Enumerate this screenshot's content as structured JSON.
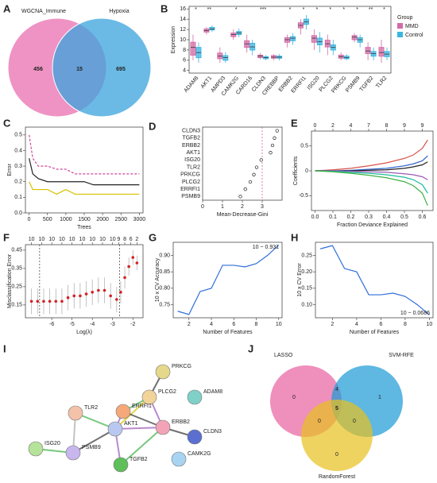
{
  "chart_data": [
    {
      "panel": "A",
      "type": "venn2",
      "sets": [
        {
          "name": "WGCNA_Immune",
          "color": "#e86fb0"
        },
        {
          "name": "Hypoxia",
          "color": "#3aa3dc"
        }
      ],
      "values": [
        456,
        15,
        695
      ]
    },
    {
      "panel": "B",
      "type": "box",
      "ylabel": "Expression",
      "legend_title": "Group",
      "ylim": [
        3.5,
        16.5
      ],
      "yticks": [
        4,
        6,
        8,
        10,
        12,
        14,
        16
      ],
      "categories": [
        "ADAM8",
        "AKT1",
        "AMPD3",
        "CAMK2G",
        "CARD16",
        "CLDN3",
        "CREBBP",
        "ERBB2",
        "ERRFI1",
        "ISG20",
        "PLCG2",
        "PRKCG",
        "PSMB9",
        "TGFB2",
        "TLR2"
      ],
      "significance": [
        "*",
        "**",
        null,
        "*",
        null,
        "***",
        null,
        "*",
        "*",
        "*",
        "*",
        "*",
        "*",
        "**",
        "*"
      ],
      "series": [
        {
          "name": "MMD",
          "color": "#d46aa6",
          "values": [
            [
              6,
              7,
              8.5,
              9.5,
              11
            ],
            [
              11,
              11.5,
              11.8,
              12.1,
              12.5
            ],
            [
              5.5,
              6.3,
              6.8,
              7.4,
              8.5
            ],
            [
              10,
              10.6,
              11,
              11.3,
              12
            ],
            [
              7.5,
              8.5,
              9.2,
              9.8,
              11
            ],
            [
              6.2,
              6.5,
              6.8,
              7,
              7.4
            ],
            [
              6,
              6.4,
              6.6,
              6.9,
              7.2
            ],
            [
              8.5,
              9.5,
              10,
              10.4,
              11
            ],
            [
              11,
              12.3,
              12.8,
              13.3,
              14
            ],
            [
              8,
              9.5,
              10.3,
              10.8,
              12
            ],
            [
              7,
              8.6,
              9.2,
              9.9,
              11
            ],
            [
              6,
              6.4,
              6.7,
              7,
              7.5
            ],
            [
              9.5,
              10,
              10.5,
              10.8,
              11.3
            ],
            [
              6,
              7.3,
              7.8,
              8.5,
              9.5
            ],
            [
              5.5,
              6.8,
              7.5,
              8.5,
              10
            ]
          ]
        },
        {
          "name": "Control",
          "color": "#3ab5e0",
          "values": [
            [
              5.5,
              6.5,
              7.5,
              8.5,
              9.5
            ],
            [
              11.5,
              11.9,
              12.1,
              12.4,
              12.8
            ],
            [
              5.5,
              6,
              6.5,
              6.9,
              7.6
            ],
            [
              10.5,
              11,
              11.3,
              11.6,
              12.2
            ],
            [
              7,
              8,
              8.6,
              9.3,
              10
            ],
            [
              6,
              6.3,
              6.5,
              6.7,
              7
            ],
            [
              6,
              6.4,
              6.6,
              6.8,
              7.2
            ],
            [
              9,
              9.8,
              10.3,
              10.6,
              11.3
            ],
            [
              12,
              13,
              13.5,
              14,
              14.8
            ],
            [
              7.5,
              9,
              9.6,
              10.3,
              11.5
            ],
            [
              7,
              8,
              8.5,
              9,
              10
            ],
            [
              6,
              6.3,
              6.5,
              6.8,
              7.2
            ],
            [
              8.5,
              9.5,
              10,
              10.4,
              11
            ],
            [
              6,
              6.8,
              7.3,
              7.7,
              8.5
            ],
            [
              6,
              6.7,
              7.2,
              7.7,
              8.5
            ]
          ]
        }
      ]
    },
    {
      "panel": "C",
      "type": "line",
      "xlabel": "Trees",
      "ylabel": "Error",
      "xlim": [
        -100,
        3100
      ],
      "xticks": [
        0,
        500,
        1000,
        1500,
        2000,
        2500,
        3000
      ],
      "ylim": [
        0,
        0.55
      ],
      "yticks": [
        {
          "value": 0,
          "label": "0.0"
        },
        0.1,
        0.2,
        0.3,
        0.4,
        0.5
      ],
      "x": [
        1,
        100,
        250,
        500,
        750,
        1000,
        1250,
        1500,
        1750,
        2000,
        2500,
        3000
      ],
      "series": [
        {
          "color": "#d0459a",
          "dash": true,
          "values": [
            0.5,
            0.35,
            0.3,
            0.3,
            0.28,
            0.28,
            0.25,
            0.25,
            0.25,
            0.25,
            0.25,
            0.25
          ]
        },
        {
          "color": "#222222",
          "values": [
            0.35,
            0.25,
            0.22,
            0.2,
            0.2,
            0.2,
            0.2,
            0.2,
            0.18,
            0.18,
            0.18,
            0.18
          ]
        },
        {
          "color": "#d8c000",
          "values": [
            0.2,
            0.15,
            0.15,
            0.15,
            0.12,
            0.15,
            0.12,
            0.12,
            0.12,
            0.12,
            0.12,
            0.12
          ]
        }
      ]
    },
    {
      "panel": "D",
      "type": "dot",
      "xlabel": "Mean-Decrease-Gini",
      "xlim": [
        0,
        4
      ],
      "xticks": [
        0,
        1,
        2,
        3
      ],
      "refline": 3,
      "categories": [
        "CLDN3",
        "TGFB2",
        "ERBB2",
        "AKT1",
        "ISG20",
        "TLR2",
        "PRKCG",
        "PLCG2",
        "ERRFI1",
        "PSMB9"
      ],
      "values": [
        3.75,
        3.62,
        3.52,
        3.42,
        2.95,
        2.72,
        2.58,
        2.4,
        2.15,
        1.9
      ]
    },
    {
      "panel": "E",
      "type": "line",
      "xlabel": "Fraction Deviance Explained",
      "ylabel": "Coefficients",
      "xlim": [
        -0.02,
        0.66
      ],
      "xticks": [
        {
          "value": 0,
          "label": "0.0"
        },
        0.1,
        0.2,
        0.3,
        0.4,
        0.5,
        0.6
      ],
      "ylim": [
        -0.8,
        0.8
      ],
      "yticks": [
        -0.5,
        0,
        0.5
      ],
      "top_ticks": [
        0,
        {
          "value": 0.1,
          "label": "2"
        },
        {
          "value": 0.2,
          "label": "4"
        },
        {
          "value": 0.3,
          "label": "7"
        },
        {
          "value": 0.4,
          "label": "8"
        },
        {
          "value": 0.5,
          "label": "9"
        },
        {
          "value": 0.6,
          "label": "9"
        }
      ],
      "x": [
        0,
        0.1,
        0.2,
        0.3,
        0.4,
        0.5,
        0.55,
        0.6,
        0.63
      ],
      "series": [
        {
          "color": "#d9534f",
          "values": [
            0,
            0.02,
            0.05,
            0.1,
            0.16,
            0.25,
            0.32,
            0.45,
            0.62
          ]
        },
        {
          "color": "#3366cc",
          "values": [
            0,
            0,
            0.01,
            0.03,
            0.05,
            0.1,
            0.14,
            0.2,
            0.3
          ]
        },
        {
          "color": "#222222",
          "values": [
            0,
            0,
            0,
            0.01,
            0.02,
            0.05,
            0.08,
            0.12,
            0.18
          ]
        },
        {
          "color": "#9b59b6",
          "values": [
            0,
            0,
            -0.01,
            -0.02,
            -0.03,
            -0.06,
            -0.08,
            -0.12,
            -0.18
          ]
        },
        {
          "color": "#1abc9c",
          "values": [
            0,
            -0.01,
            -0.03,
            -0.05,
            -0.08,
            -0.13,
            -0.18,
            -0.28,
            -0.45
          ]
        },
        {
          "color": "#3cb043",
          "values": [
            0,
            -0.02,
            -0.05,
            -0.09,
            -0.14,
            -0.22,
            -0.3,
            -0.45,
            -0.7
          ]
        }
      ]
    },
    {
      "panel": "F",
      "type": "errorbar",
      "xlabel": "Log(λ)",
      "ylabel": "Misclassification Error",
      "xlim": [
        -7.3,
        -1.5
      ],
      "xticks": [
        -6,
        -5,
        -4,
        -3,
        -2
      ],
      "ylim": [
        0.08,
        0.48
      ],
      "yticks": [
        0.15,
        0.25,
        0.35,
        0.45
      ],
      "reflines": [
        -6.6,
        -2.65
      ],
      "color": "#d62020",
      "top_ticks": [
        {
          "value": -7,
          "label": "10"
        },
        {
          "value": -6.5,
          "label": "10"
        },
        {
          "value": -6,
          "label": "10"
        },
        {
          "value": -5.5,
          "label": "10"
        },
        {
          "value": -5,
          "label": "10"
        },
        {
          "value": -4.5,
          "label": "10"
        },
        {
          "value": -4,
          "label": "10"
        },
        {
          "value": -3.5,
          "label": "10"
        },
        {
          "value": -3,
          "label": "10"
        },
        {
          "value": -2.7,
          "label": "9"
        },
        {
          "value": -2.4,
          "label": "8"
        },
        {
          "value": -2.1,
          "label": "6"
        },
        {
          "value": -1.8,
          "label": "2"
        }
      ],
      "x": [
        -7,
        -6.7,
        -6.4,
        -6.1,
        -5.8,
        -5.5,
        -5.2,
        -4.9,
        -4.6,
        -4.3,
        -4,
        -3.7,
        -3.4,
        -3.1,
        -2.8,
        -2.6,
        -2.4,
        -2.2,
        -2,
        -1.8
      ],
      "values": [
        0.17,
        0.17,
        0.17,
        0.17,
        0.17,
        0.17,
        0.19,
        0.2,
        0.2,
        0.21,
        0.22,
        0.23,
        0.23,
        0.2,
        0.18,
        0.22,
        0.3,
        0.36,
        0.41,
        0.38
      ],
      "errors": [
        0.07,
        0.07,
        0.07,
        0.07,
        0.07,
        0.07,
        0.07,
        0.07,
        0.07,
        0.07,
        0.07,
        0.07,
        0.07,
        0.07,
        0.07,
        0.06,
        0.06,
        0.05,
        0.04,
        0.04
      ]
    },
    {
      "panel": "G",
      "type": "line",
      "xlabel": "Number of Features",
      "ylabel": "10 x CV Accuracy",
      "annotation": "10 ~ 0.931",
      "xlim": [
        0.6,
        10.3
      ],
      "xticks": [
        2,
        4,
        6,
        8,
        10
      ],
      "ylim": [
        0.71,
        0.94
      ],
      "yticks": [
        0.75,
        {
          "value": 0.8,
          "label": "0.80"
        },
        0.85,
        {
          "value": 0.9,
          "label": "0.90"
        }
      ],
      "x": [
        1,
        2,
        3,
        4,
        5,
        6,
        7,
        8,
        9,
        10
      ],
      "series": [
        {
          "color": "#2f6fd8",
          "values": [
            0.73,
            0.72,
            0.79,
            0.8,
            0.87,
            0.87,
            0.865,
            0.875,
            0.9,
            0.9314
          ]
        }
      ]
    },
    {
      "panel": "H",
      "type": "line",
      "xlabel": "Number of Features",
      "ylabel": "10 x CV Error",
      "annotation": "10 ~ 0.0686",
      "xlim": [
        0.6,
        10.3
      ],
      "xticks": [
        2,
        4,
        6,
        8,
        10
      ],
      "ylim": [
        0.06,
        0.29
      ],
      "yticks": [
        {
          "value": 0.1,
          "label": "0.10"
        },
        0.15,
        {
          "value": 0.2,
          "label": "0.20"
        },
        0.25
      ],
      "x": [
        1,
        2,
        3,
        4,
        5,
        6,
        7,
        8,
        9,
        10
      ],
      "series": [
        {
          "color": "#2f6fd8",
          "values": [
            0.27,
            0.28,
            0.21,
            0.2,
            0.13,
            0.13,
            0.135,
            0.125,
            0.1,
            0.0686
          ]
        }
      ]
    },
    {
      "panel": "I",
      "type": "network",
      "nodes": [
        {
          "label": "PRKCG",
          "color": "#e5d88a"
        },
        {
          "label": "PLCG2",
          "color": "#f2d39a"
        },
        {
          "label": "ADAM8",
          "color": "#7fd1c8"
        },
        {
          "label": "ERRFI1",
          "color": "#f5a97a"
        },
        {
          "label": "TLR2",
          "color": "#f3c2a8"
        },
        {
          "label": "ERBB2",
          "color": "#f3a3b8"
        },
        {
          "label": "AKT1",
          "color": "#b9c8f0"
        },
        {
          "label": "CLDN3",
          "color": "#5b6fd0"
        },
        {
          "label": "ISG20",
          "color": "#b6e39a"
        },
        {
          "label": "PSMB9",
          "color": "#c8b6ef"
        },
        {
          "label": "TGFB2",
          "color": "#5fbf5a"
        },
        {
          "label": "CAMK2G",
          "color": "#a8d4f2"
        }
      ]
    },
    {
      "panel": "J",
      "type": "venn3",
      "sets": [
        {
          "name": "LASSO",
          "color": "#e8609f"
        },
        {
          "name": "SVM-RFE",
          "color": "#1a9ad6"
        },
        {
          "name": "RandomForest",
          "color": "#e8c11e"
        }
      ],
      "values": [
        0,
        1,
        0,
        4,
        0,
        0,
        5
      ]
    }
  ]
}
